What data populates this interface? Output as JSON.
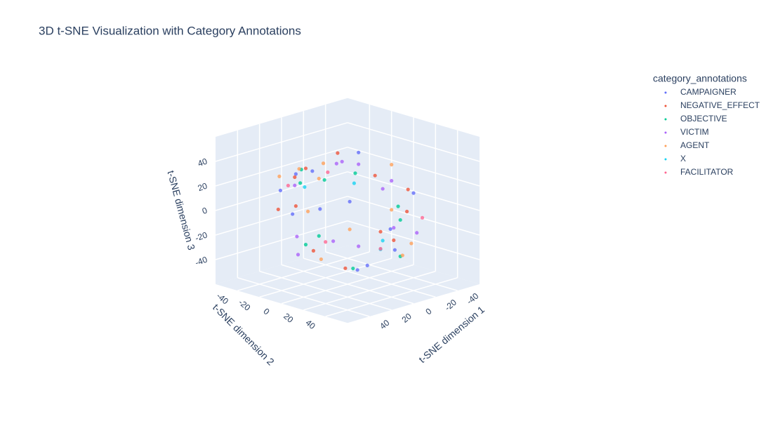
{
  "chart_data": {
    "type": "scatter3d",
    "title": "3D t-SNE Visualization with Category Annotations",
    "xlabel": "t-SNE dimension 1",
    "ylabel": "t-SNE dimension 2",
    "zlabel": "t-SNE dimension 3",
    "xlim": [
      -60,
      60
    ],
    "ylim": [
      -60,
      60
    ],
    "zlim": [
      -60,
      60
    ],
    "xticks": [
      -40,
      -20,
      0,
      20,
      40
    ],
    "yticks": [
      -40,
      -20,
      0,
      20,
      40
    ],
    "zticks": [
      -40,
      -20,
      0,
      20,
      40
    ],
    "grid": true,
    "legend_title": "category_annotations",
    "legend": "right",
    "series": [
      {
        "name": "CAMPAIGNER",
        "color": "#636efa",
        "x": [
          12,
          -25,
          33,
          -8,
          40,
          -38,
          5,
          21,
          -15,
          -30,
          28,
          0
        ],
        "y": [
          -20,
          14,
          8,
          35,
          -10,
          22,
          -42,
          30,
          -5,
          -28,
          -33,
          18
        ],
        "z": [
          30,
          -18,
          12,
          -25,
          5,
          10,
          20,
          -35,
          42,
          -8,
          15,
          -40
        ]
      },
      {
        "name": "NEGATIVE_EFFECT",
        "color": "#EF553B",
        "x": [
          -5,
          18,
          -32,
          26,
          -14,
          36,
          -40,
          9,
          22,
          -22,
          3,
          45
        ],
        "y": [
          25,
          -30,
          10,
          -12,
          40,
          5,
          -15,
          -38,
          20,
          33,
          -6,
          -18
        ],
        "z": [
          -12,
          24,
          -30,
          38,
          6,
          -22,
          14,
          -4,
          -36,
          20,
          46,
          8
        ]
      },
      {
        "name": "OBJECTIVE",
        "color": "#00cc96",
        "x": [
          30,
          -18,
          7,
          -36,
          15,
          -2,
          24,
          -27,
          41,
          -10
        ],
        "y": [
          -8,
          28,
          -35,
          12,
          20,
          -45,
          3,
          -20,
          15,
          38
        ],
        "z": [
          -22,
          6,
          26,
          -14,
          -38,
          10,
          32,
          18,
          -6,
          -30
        ]
      },
      {
        "name": "VICTIM",
        "color": "#ab63fa",
        "x": [
          -28,
          10,
          35,
          -12,
          -42,
          20,
          2,
          -20,
          30,
          16,
          -35,
          8
        ],
        "y": [
          12,
          -36,
          22,
          -2,
          -10,
          30,
          44,
          -25,
          -15,
          6,
          28,
          -40
        ],
        "z": [
          20,
          -28,
          -10,
          34,
          4,
          -16,
          -2,
          28,
          -32,
          44,
          -20,
          12
        ]
      },
      {
        "name": "AGENT",
        "color": "#FFA15A",
        "x": [
          8,
          -34,
          26,
          -16,
          38,
          -6,
          -24,
          14,
          32,
          -44,
          20
        ],
        "y": [
          -28,
          6,
          -18,
          42,
          14,
          -32,
          26,
          -8,
          34,
          -4,
          -42
        ],
        "z": [
          -6,
          30,
          36,
          -20,
          -26,
          16,
          -36,
          40,
          2,
          -12,
          22
        ]
      },
      {
        "name": "X",
        "color": "#19d3f3",
        "x": [
          -12,
          25,
          -30,
          4
        ],
        "y": [
          18,
          -14,
          -24,
          36
        ],
        "z": [
          -30,
          22,
          8,
          -14
        ]
      },
      {
        "name": "FACILITATOR",
        "color": "#FF6692",
        "x": [
          22,
          -6,
          -38,
          34,
          10
        ],
        "y": [
          4,
          -26,
          30,
          -20,
          40
        ],
        "z": [
          38,
          -34,
          -8,
          24,
          -18
        ]
      }
    ]
  }
}
